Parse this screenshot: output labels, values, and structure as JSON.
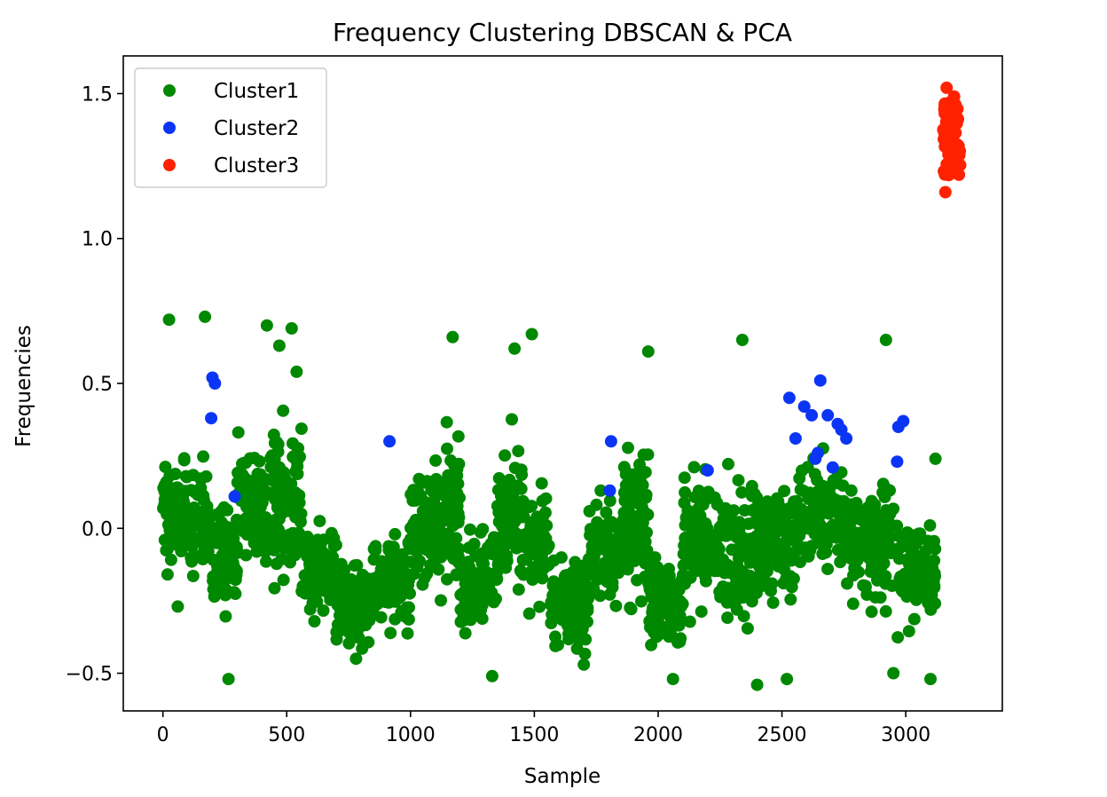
{
  "chart_data": {
    "type": "scatter",
    "title": "Frequency Clustering DBSCAN & PCA",
    "xlabel": "Sample",
    "ylabel": "Frequencies",
    "xlim": [
      -160,
      3390
    ],
    "ylim": [
      -0.63,
      1.63
    ],
    "xticks": [
      0,
      500,
      1000,
      1500,
      2000,
      2500,
      3000
    ],
    "xtick_labels": [
      "0",
      "500",
      "1000",
      "1500",
      "2000",
      "2500",
      "3000"
    ],
    "yticks": [
      -0.5,
      0.0,
      0.5,
      1.0,
      1.5
    ],
    "ytick_labels": [
      "−0.5",
      "0.0",
      "0.5",
      "1.0",
      "1.5"
    ],
    "grid": false,
    "legend_position": "upper-left",
    "series": [
      {
        "name": "Cluster1",
        "color": "#008800",
        "segments": [
          {
            "x0": 0,
            "x1": 60,
            "center": 0.05,
            "spread": 0.23,
            "count": 45
          },
          {
            "x0": 60,
            "x1": 180,
            "center": 0.02,
            "spread": 0.22,
            "count": 70
          },
          {
            "x0": 180,
            "x1": 300,
            "center": -0.1,
            "spread": 0.2,
            "count": 70
          },
          {
            "x0": 300,
            "x1": 420,
            "center": 0.1,
            "spread": 0.22,
            "count": 90
          },
          {
            "x0": 420,
            "x1": 560,
            "center": 0.1,
            "spread": 0.25,
            "count": 110
          },
          {
            "x0": 560,
            "x1": 700,
            "center": -0.15,
            "spread": 0.16,
            "count": 90
          },
          {
            "x0": 700,
            "x1": 850,
            "center": -0.25,
            "spread": 0.14,
            "count": 110
          },
          {
            "x0": 850,
            "x1": 1000,
            "center": -0.18,
            "spread": 0.15,
            "count": 90
          },
          {
            "x0": 1000,
            "x1": 1100,
            "center": 0.0,
            "spread": 0.2,
            "count": 80
          },
          {
            "x0": 1100,
            "x1": 1200,
            "center": 0.05,
            "spread": 0.25,
            "count": 80
          },
          {
            "x0": 1200,
            "x1": 1350,
            "center": -0.2,
            "spread": 0.18,
            "count": 90
          },
          {
            "x0": 1350,
            "x1": 1450,
            "center": 0.05,
            "spread": 0.25,
            "count": 80
          },
          {
            "x0": 1450,
            "x1": 1560,
            "center": -0.05,
            "spread": 0.2,
            "count": 70
          },
          {
            "x0": 1560,
            "x1": 1720,
            "center": -0.25,
            "spread": 0.14,
            "count": 110
          },
          {
            "x0": 1720,
            "x1": 1850,
            "center": -0.1,
            "spread": 0.18,
            "count": 70
          },
          {
            "x0": 1850,
            "x1": 1960,
            "center": 0.05,
            "spread": 0.25,
            "count": 90
          },
          {
            "x0": 1960,
            "x1": 2100,
            "center": -0.25,
            "spread": 0.14,
            "count": 100
          },
          {
            "x0": 2100,
            "x1": 2250,
            "center": -0.05,
            "spread": 0.2,
            "count": 100
          },
          {
            "x0": 2250,
            "x1": 2400,
            "center": -0.1,
            "spread": 0.25,
            "count": 100
          },
          {
            "x0": 2400,
            "x1": 2550,
            "center": -0.05,
            "spread": 0.2,
            "count": 90
          },
          {
            "x0": 2550,
            "x1": 2750,
            "center": 0.05,
            "spread": 0.18,
            "count": 120
          },
          {
            "x0": 2750,
            "x1": 2950,
            "center": -0.05,
            "spread": 0.2,
            "count": 120
          },
          {
            "x0": 2950,
            "x1": 3120,
            "center": -0.15,
            "spread": 0.17,
            "count": 100
          }
        ],
        "extreme_points": [
          [
            25,
            0.72
          ],
          [
            170,
            0.73
          ],
          [
            420,
            0.7
          ],
          [
            470,
            0.63
          ],
          [
            520,
            0.69
          ],
          [
            540,
            0.54
          ],
          [
            1170,
            0.66
          ],
          [
            1420,
            0.62
          ],
          [
            1490,
            0.67
          ],
          [
            1960,
            0.61
          ],
          [
            2340,
            0.65
          ],
          [
            2920,
            0.65
          ],
          [
            3120,
            0.24
          ],
          [
            3100,
            -0.52
          ],
          [
            2950,
            -0.5
          ],
          [
            2520,
            -0.52
          ],
          [
            2400,
            -0.54
          ],
          [
            1330,
            -0.51
          ],
          [
            265,
            -0.52
          ],
          [
            60,
            -0.27
          ],
          [
            1700,
            -0.47
          ],
          [
            2060,
            -0.52
          ],
          [
            780,
            -0.45
          ]
        ]
      },
      {
        "name": "Cluster2",
        "color": "#0a35f5",
        "points": [
          [
            200,
            0.52
          ],
          [
            210,
            0.5
          ],
          [
            195,
            0.38
          ],
          [
            290,
            0.11
          ],
          [
            915,
            0.3
          ],
          [
            1810,
            0.3
          ],
          [
            1805,
            0.13
          ],
          [
            2200,
            0.2
          ],
          [
            2530,
            0.45
          ],
          [
            2555,
            0.31
          ],
          [
            2590,
            0.42
          ],
          [
            2620,
            0.39
          ],
          [
            2635,
            0.24
          ],
          [
            2645,
            0.26
          ],
          [
            2655,
            0.51
          ],
          [
            2685,
            0.39
          ],
          [
            2705,
            0.21
          ],
          [
            2725,
            0.36
          ],
          [
            2740,
            0.34
          ],
          [
            2760,
            0.31
          ],
          [
            2965,
            0.23
          ],
          [
            2970,
            0.35
          ],
          [
            2990,
            0.37
          ]
        ]
      },
      {
        "name": "Cluster3",
        "color": "#ff2200",
        "x_range": [
          3150,
          3220
        ],
        "y_range": [
          1.16,
          1.52
        ],
        "count": 70,
        "extreme_points": [
          [
            3165,
            1.52
          ],
          [
            3195,
            1.49
          ],
          [
            3160,
            1.16
          ],
          [
            3215,
            1.22
          ]
        ]
      }
    ]
  }
}
